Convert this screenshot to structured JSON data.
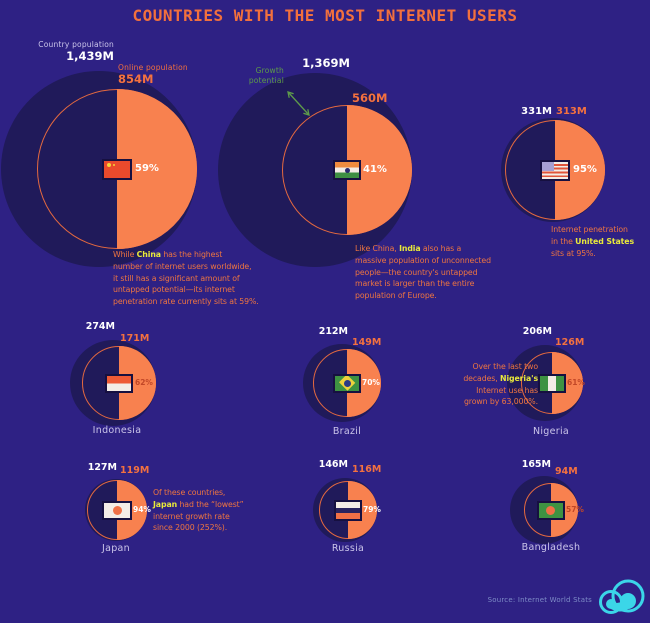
{
  "title": "COUNTRIES WITH THE MOST INTERNET USERS",
  "legend": {
    "country_population": "Country population",
    "online_population": "Online population",
    "growth_potential_line1": "Growth",
    "growth_potential_line2": "potential"
  },
  "source": "Source: Internet World Stats",
  "colors": {
    "background": "#2e2184",
    "outer_circle": "#201a5a",
    "online_fill": "#f8814f",
    "inner_ring": "#e4693f",
    "accent_orange": "#f2703d",
    "highlight_yellow": "#e9e93a",
    "growth_green": "#5e9b4a",
    "label_lavender": "#cbc5ea",
    "percent_dark": "#c14727",
    "source_text": "#7e8cc7",
    "logo_cyan": "#3bd6e8"
  },
  "chart_data": {
    "type": "proportional-circles",
    "title": "Countries with the most internet users",
    "unit": "millions of people",
    "encoding": "outer dark circle area = country population; inner orange half-filled circle = online population; gap = growth potential",
    "series": [
      {
        "country": "China",
        "population_m": 1439,
        "online_m": 854,
        "penetration_pct": 59
      },
      {
        "country": "India",
        "population_m": 1369,
        "online_m": 560,
        "penetration_pct": 41
      },
      {
        "country": "United States",
        "population_m": 331,
        "online_m": 313,
        "penetration_pct": 95
      },
      {
        "country": "Indonesia",
        "population_m": 274,
        "online_m": 171,
        "penetration_pct": 62
      },
      {
        "country": "Brazil",
        "population_m": 212,
        "online_m": 149,
        "penetration_pct": 70
      },
      {
        "country": "Nigeria",
        "population_m": 206,
        "online_m": 126,
        "penetration_pct": 61
      },
      {
        "country": "Japan",
        "population_m": 127,
        "online_m": 119,
        "penetration_pct": 94
      },
      {
        "country": "Russia",
        "population_m": 146,
        "online_m": 116,
        "penetration_pct": 79
      },
      {
        "country": "Bangladesh",
        "population_m": 165,
        "online_m": 94,
        "penetration_pct": 57
      }
    ],
    "source": "Internet World Stats"
  },
  "countries": [
    {
      "id": "china",
      "name": "China",
      "population": "1,439M",
      "online": "854M",
      "percent": "59%",
      "percent_color": "#ffffff",
      "flag": "china",
      "caption": [
        [
          {
            "t": "While "
          },
          {
            "t": "China",
            "hl": true
          },
          {
            "t": " has the highest"
          }
        ],
        [
          {
            "t": "number of internet users worldwide,"
          }
        ],
        [
          {
            "t": "it still has a significant amount of"
          }
        ],
        [
          {
            "t": "untapped potential—its internet"
          }
        ],
        [
          {
            "t": "penetration rate currently sits at 59%."
          }
        ]
      ]
    },
    {
      "id": "india",
      "name": "India",
      "population": "1,369M",
      "online": "560M",
      "percent": "41%",
      "percent_color": "#ffffff",
      "flag": "india",
      "caption": [
        [
          {
            "t": "Like China, "
          },
          {
            "t": "India",
            "hl": true
          },
          {
            "t": " also has a"
          }
        ],
        [
          {
            "t": "massive population of unconnected"
          }
        ],
        [
          {
            "t": "people—the country's untapped"
          }
        ],
        [
          {
            "t": "market is larger than the entire"
          }
        ],
        [
          {
            "t": "population of Europe."
          }
        ]
      ]
    },
    {
      "id": "usa",
      "name": "United States",
      "population": "331M",
      "online": "313M",
      "percent": "95%",
      "percent_color": "#ffffff",
      "flag": "usa",
      "caption": [
        [
          {
            "t": "Internet penetration"
          }
        ],
        [
          {
            "t": "in the "
          },
          {
            "t": "United States",
            "hl": true
          }
        ],
        [
          {
            "t": "sits at 95%."
          }
        ]
      ]
    },
    {
      "id": "indonesia",
      "label": "Indonesia",
      "population": "274M",
      "online": "171M",
      "percent": "62%",
      "percent_color": "#c14727",
      "flag": "indonesia"
    },
    {
      "id": "brazil",
      "label": "Brazil",
      "population": "212M",
      "online": "149M",
      "percent": "70%",
      "percent_color": "#ffffff",
      "flag": "brazil"
    },
    {
      "id": "nigeria",
      "label": "Nigeria",
      "population": "206M",
      "online": "126M",
      "percent": "61%",
      "percent_color": "#c14727",
      "flag": "nigeria",
      "caption": [
        [
          {
            "t": "Over the last two"
          }
        ],
        [
          {
            "t": "decades, "
          },
          {
            "t": "Nigeria's",
            "hl": true
          }
        ],
        [
          {
            "t": "Internet use has"
          }
        ],
        [
          {
            "t": "grown by 63,000%."
          }
        ]
      ]
    },
    {
      "id": "japan",
      "label": "Japan",
      "population": "127M",
      "online": "119M",
      "percent": "94%",
      "percent_color": "#ffffff",
      "flag": "japan",
      "caption": [
        [
          {
            "t": "Of these countries,"
          }
        ],
        [
          {
            "t": "Japan",
            "hl": true
          },
          {
            "t": " had the “lowest”"
          }
        ],
        [
          {
            "t": "internet growth rate"
          }
        ],
        [
          {
            "t": "since 2000 (252%)."
          }
        ]
      ]
    },
    {
      "id": "russia",
      "label": "Russia",
      "population": "146M",
      "online": "116M",
      "percent": "79%",
      "percent_color": "#ffffff",
      "flag": "russia"
    },
    {
      "id": "bangladesh",
      "label": "Bangladesh",
      "population": "165M",
      "online": "94M",
      "percent": "57%",
      "percent_color": "#c14727",
      "flag": "bangladesh"
    }
  ]
}
